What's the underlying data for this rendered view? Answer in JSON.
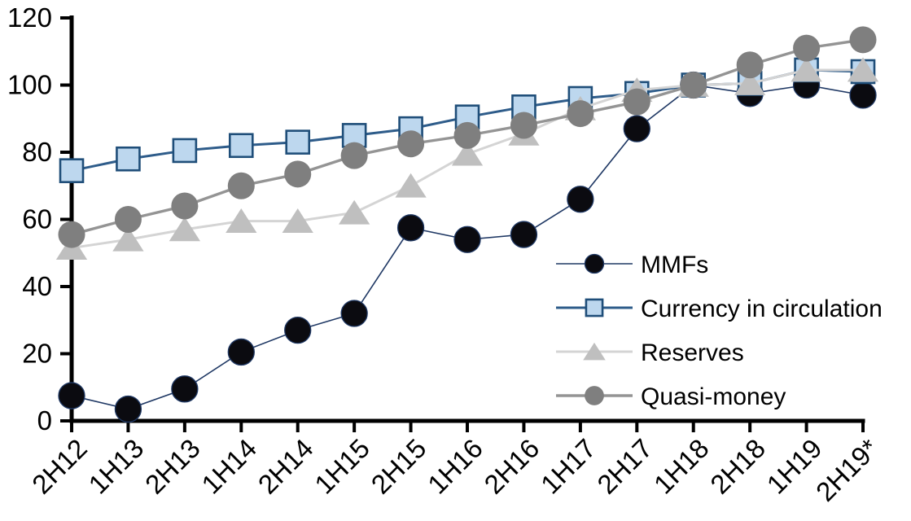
{
  "chart_data": {
    "type": "line",
    "title": "",
    "xlabel": "",
    "ylabel": "",
    "grid": "off",
    "background_color": "#ffffff",
    "axis_color": "#000000",
    "legend_position": "inside-right",
    "ylim": [
      0,
      120
    ],
    "yticks": [
      0,
      20,
      40,
      60,
      80,
      100,
      120
    ],
    "categories": [
      "2H12",
      "1H13",
      "2H13",
      "1H14",
      "2H14",
      "1H15",
      "2H15",
      "1H16",
      "2H16",
      "1H17",
      "2H17",
      "1H18",
      "2H18",
      "1H19",
      "2H19*"
    ],
    "series": [
      {
        "name": "MMFs",
        "marker": "circle",
        "marker_size": 32,
        "color": "#0b0b10",
        "border_color": "#1F3864",
        "line_color": "#1F3864",
        "line_width": 1.6,
        "values": [
          7.5,
          3.5,
          9.5,
          20.5,
          27,
          32,
          57.5,
          54,
          55.5,
          66,
          87,
          100,
          97.5,
          100,
          97
        ]
      },
      {
        "name": "Currency in circulation",
        "marker": "square",
        "marker_size": 28,
        "color": "#BDD7EE",
        "border_color": "#1F4E79",
        "line_color": "#2E5C8A",
        "line_width": 3,
        "values": [
          74.5,
          78,
          80.5,
          82,
          83,
          85,
          87,
          90.5,
          93.5,
          96,
          97.5,
          100,
          100.5,
          104.5,
          104
        ]
      },
      {
        "name": "Reserves",
        "marker": "triangle",
        "marker_size": 33,
        "color": "#BFBFBF",
        "border_color": "",
        "line_color": "#D4D4D4",
        "line_width": 3,
        "values": [
          51.5,
          54,
          57,
          59.5,
          59.5,
          62,
          70,
          79.5,
          85.5,
          93,
          98.5,
          100,
          100.5,
          104.5,
          104.5
        ]
      },
      {
        "name": "Quasi-money",
        "marker": "circle",
        "marker_size": 33,
        "color": "#7F7F7F",
        "border_color": "",
        "line_color": "#949494",
        "line_width": 3.4,
        "values": [
          55.5,
          60,
          64,
          70,
          73.5,
          79,
          82.5,
          85,
          88,
          91.5,
          95,
          100,
          106,
          111,
          113.5
        ]
      }
    ]
  }
}
